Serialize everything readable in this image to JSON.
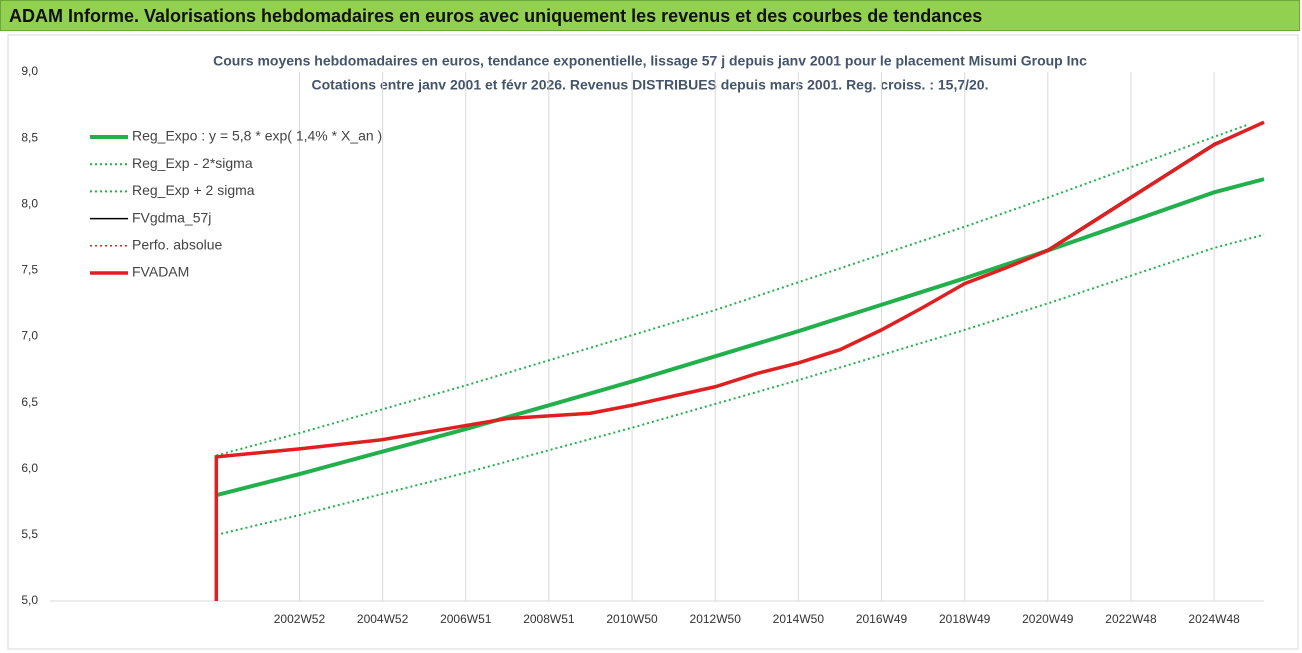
{
  "header": {
    "title": "ADAM Informe. Valorisations hebdomadaires en euros avec uniquement les revenus et des courbes de tendances"
  },
  "chart_data": {
    "type": "line",
    "title": "Cours moyens hebdomadaires en euros, tendance exponentielle, lissage 57 j depuis janv 2001 pour le placement Misumi Group Inc",
    "subtitle": "Cotations entre janv 2001 et févr 2026. Revenus DISTRIBUES depuis mars 2001. Reg. croiss. : 15,7/20.",
    "xlim": [
      1997,
      2026.2
    ],
    "xticks": [
      {
        "value": 2003,
        "label": "2002W52"
      },
      {
        "value": 2005,
        "label": "2004W52"
      },
      {
        "value": 2007,
        "label": "2006W51"
      },
      {
        "value": 2009,
        "label": "2008W51"
      },
      {
        "value": 2011,
        "label": "2010W50"
      },
      {
        "value": 2013,
        "label": "2012W50"
      },
      {
        "value": 2015,
        "label": "2014W50"
      },
      {
        "value": 2017,
        "label": "2016W49"
      },
      {
        "value": 2019,
        "label": "2018W49"
      },
      {
        "value": 2021,
        "label": "2020W49"
      },
      {
        "value": 2023,
        "label": "2022W48"
      },
      {
        "value": 2025,
        "label": "2024W48"
      }
    ],
    "ylim": [
      5,
      9
    ],
    "yticks": [
      {
        "value": 5,
        "label": "5,0"
      },
      {
        "value": 5.5,
        "label": "5,5"
      },
      {
        "value": 6,
        "label": "6,0"
      },
      {
        "value": 6.5,
        "label": "6,5"
      },
      {
        "value": 7,
        "label": "7,0"
      },
      {
        "value": 7.5,
        "label": "7,5"
      },
      {
        "value": 8,
        "label": "8,0"
      },
      {
        "value": 8.5,
        "label": "8,5"
      },
      {
        "value": 9,
        "label": "9,0"
      }
    ],
    "grid": true,
    "legend": "top-left",
    "series": [
      {
        "name": "Reg_Expo : y = 5,8 * exp( 1,4% *  X_an )",
        "color": "#22b04c",
        "style": "solid",
        "width": 4,
        "x": [
          2001,
          2003,
          2005,
          2007,
          2009,
          2011,
          2013,
          2015,
          2017,
          2019,
          2021,
          2023,
          2025,
          2026.2
        ],
        "values": [
          5.8,
          5.96,
          6.13,
          6.3,
          6.48,
          6.66,
          6.85,
          7.04,
          7.24,
          7.44,
          7.65,
          7.87,
          8.09,
          8.19
        ]
      },
      {
        "name": "Reg_Exp - 2*sigma",
        "color": "#22b04c",
        "style": "dotted",
        "width": 2,
        "x": [
          2001,
          2003,
          2005,
          2007,
          2009,
          2011,
          2013,
          2015,
          2017,
          2019,
          2021,
          2023,
          2025,
          2026.2
        ],
        "values": [
          5.5,
          5.65,
          5.81,
          5.97,
          6.14,
          6.31,
          6.49,
          6.67,
          6.86,
          7.05,
          7.25,
          7.46,
          7.67,
          7.77
        ]
      },
      {
        "name": "Reg_Exp + 2 sigma",
        "color": "#22b04c",
        "style": "dotted",
        "width": 2,
        "x": [
          2001,
          2003,
          2005,
          2007,
          2009,
          2011,
          2013,
          2015,
          2017,
          2019,
          2021,
          2023,
          2025,
          2025.8
        ],
        "values": [
          6.1,
          6.27,
          6.45,
          6.63,
          6.82,
          7.01,
          7.2,
          7.41,
          7.62,
          7.83,
          8.05,
          8.28,
          8.51,
          8.6
        ]
      },
      {
        "name": "FVgdma_57j",
        "color": "#000000",
        "style": "solid",
        "width": 1.5,
        "x": [
          2001,
          2001,
          2003,
          2005,
          2006.5,
          2008,
          2010,
          2011,
          2012,
          2013,
          2014,
          2015,
          2016,
          2017,
          2018,
          2019,
          2020,
          2021,
          2022,
          2023,
          2024,
          2025,
          2026.2
        ],
        "values": [
          5.0,
          6.09,
          6.15,
          6.22,
          6.3,
          6.38,
          6.42,
          6.48,
          6.55,
          6.62,
          6.72,
          6.8,
          6.9,
          7.05,
          7.22,
          7.4,
          7.52,
          7.66,
          7.86,
          8.06,
          8.26,
          8.46,
          8.62
        ]
      },
      {
        "name": "Perfo. absolue",
        "color": "#e02020",
        "style": "dotted",
        "width": 1.5,
        "x": [
          2001,
          2001,
          2003,
          2005,
          2006.5,
          2008,
          2010,
          2011,
          2012,
          2013,
          2014,
          2015,
          2016,
          2017,
          2018,
          2019,
          2020,
          2021,
          2022,
          2023,
          2024,
          2025,
          2026.2
        ],
        "values": [
          5.0,
          6.09,
          6.15,
          6.22,
          6.3,
          6.38,
          6.42,
          6.48,
          6.55,
          6.62,
          6.72,
          6.8,
          6.9,
          7.05,
          7.22,
          7.4,
          7.52,
          7.65,
          7.85,
          8.05,
          8.25,
          8.45,
          8.62
        ]
      },
      {
        "name": "FVADAM",
        "color": "#e02020",
        "style": "solid",
        "width": 3.5,
        "x": [
          2001,
          2001,
          2003,
          2005,
          2006.5,
          2008,
          2010,
          2011,
          2012,
          2013,
          2014,
          2015,
          2016,
          2017,
          2018,
          2019,
          2020,
          2021,
          2022,
          2023,
          2024,
          2025,
          2026.2
        ],
        "values": [
          5.0,
          6.09,
          6.15,
          6.22,
          6.3,
          6.38,
          6.42,
          6.48,
          6.55,
          6.62,
          6.72,
          6.8,
          6.9,
          7.05,
          7.22,
          7.4,
          7.52,
          7.65,
          7.85,
          8.05,
          8.25,
          8.45,
          8.62
        ]
      }
    ]
  }
}
